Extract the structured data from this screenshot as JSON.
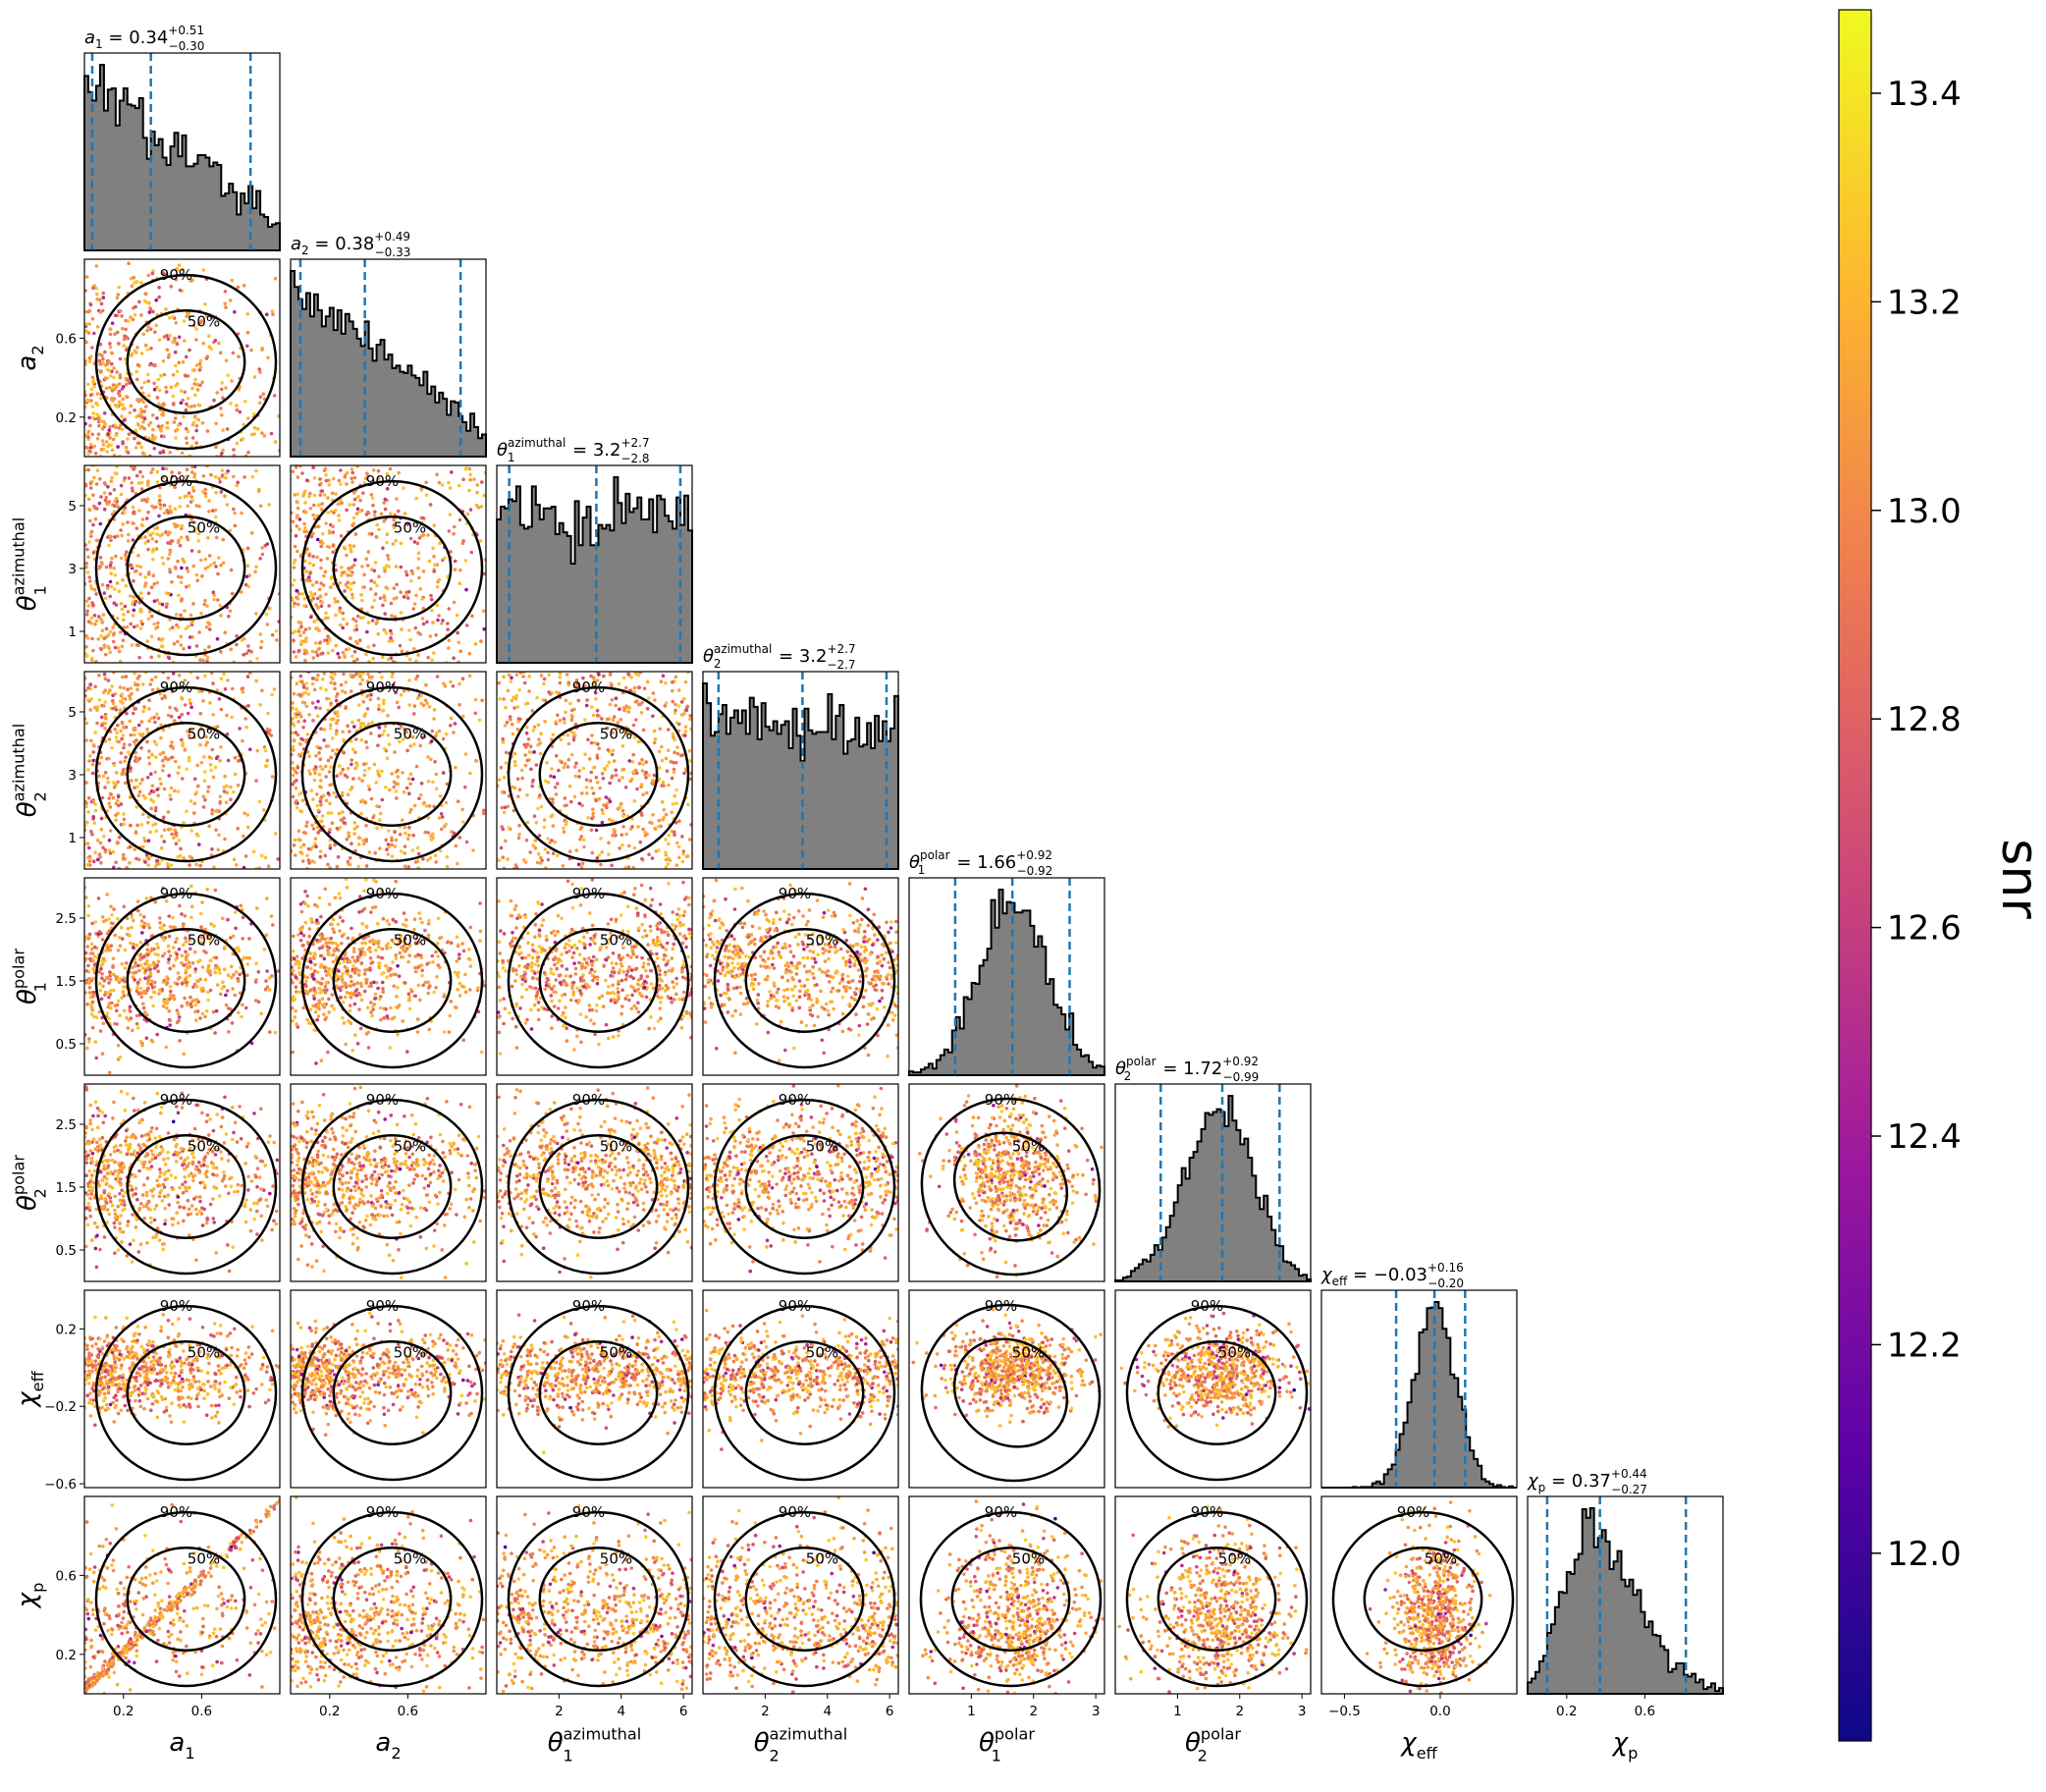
{
  "figure": {
    "colorbar_label": "snr",
    "colorbar_ticks": [
      "12.0",
      "12.2",
      "12.4",
      "12.6",
      "12.8",
      "13.0",
      "13.2",
      "13.4"
    ],
    "colorbar_tick_values": [
      12.0,
      12.2,
      12.4,
      12.6,
      12.8,
      13.0,
      13.2,
      13.4
    ],
    "colorbar_range": [
      11.82,
      13.48
    ],
    "colormap": [
      "#0d0887",
      "#5c01a6",
      "#9c179e",
      "#cc4778",
      "#ed7953",
      "#fdb42f",
      "#f0f921"
    ],
    "hist_fill": "#808080",
    "quantile_line_color": "#1f77b4",
    "contour_color": "#000000"
  },
  "chart_data": {
    "type": "scatter",
    "subtype": "corner_plot",
    "parameters": [
      {
        "key": "a1",
        "name": "a",
        "sub": "1",
        "sup": "",
        "title": {
          "median": "0.34",
          "plus": "+0.51",
          "minus": "−0.30"
        },
        "quantiles": [
          0.04,
          0.34,
          0.85
        ],
        "range": [
          0.0,
          1.0
        ],
        "ticks": [
          "0.2",
          "0.6"
        ],
        "tick_values": [
          0.2,
          0.6
        ],
        "hist_shape": "decreasing"
      },
      {
        "key": "a2",
        "name": "a",
        "sub": "2",
        "sup": "",
        "title": {
          "median": "0.38",
          "plus": "+0.49",
          "minus": "−0.33"
        },
        "quantiles": [
          0.05,
          0.38,
          0.87
        ],
        "range": [
          0.0,
          1.0
        ],
        "ticks": [
          "0.2",
          "0.6"
        ],
        "tick_values": [
          0.2,
          0.6
        ],
        "hist_shape": "decreasing_peak"
      },
      {
        "key": "theta1_az",
        "name": "θ",
        "sub": "1",
        "sup": "azimuthal",
        "title": {
          "median": "3.2",
          "plus": "+2.7",
          "minus": "−2.8"
        },
        "quantiles": [
          0.4,
          3.2,
          5.9
        ],
        "range": [
          0.0,
          6.28
        ],
        "ticks": [
          "1",
          "3",
          "5"
        ],
        "tick_values": [
          1,
          3,
          5
        ],
        "xticks": [
          "2",
          "4",
          "6"
        ],
        "xtick_values": [
          2,
          4,
          6
        ],
        "hist_shape": "flat"
      },
      {
        "key": "theta2_az",
        "name": "θ",
        "sub": "2",
        "sup": "azimuthal",
        "title": {
          "median": "3.2",
          "plus": "+2.7",
          "minus": "−2.7"
        },
        "quantiles": [
          0.5,
          3.2,
          5.9
        ],
        "range": [
          0.0,
          6.28
        ],
        "ticks": [
          "1",
          "3",
          "5"
        ],
        "tick_values": [
          1,
          3,
          5
        ],
        "xticks": [
          "2",
          "4",
          "6"
        ],
        "xtick_values": [
          2,
          4,
          6
        ],
        "hist_shape": "flat"
      },
      {
        "key": "theta1_pol",
        "name": "θ",
        "sub": "1",
        "sup": "polar",
        "title": {
          "median": "1.66",
          "plus": "+0.92",
          "minus": "−0.92"
        },
        "quantiles": [
          0.74,
          1.66,
          2.58
        ],
        "range": [
          0.0,
          3.14
        ],
        "ticks": [
          "0.5",
          "1.5",
          "2.5"
        ],
        "tick_values": [
          0.5,
          1.5,
          2.5
        ],
        "xticks": [
          "1",
          "2",
          "3"
        ],
        "xtick_values": [
          1,
          2,
          3
        ],
        "hist_shape": "gauss"
      },
      {
        "key": "theta2_pol",
        "name": "θ",
        "sub": "2",
        "sup": "polar",
        "title": {
          "median": "1.72",
          "plus": "+0.92",
          "minus": "−0.99"
        },
        "quantiles": [
          0.73,
          1.72,
          2.64
        ],
        "range": [
          0.0,
          3.14
        ],
        "ticks": [
          "0.5",
          "1.5",
          "2.5"
        ],
        "tick_values": [
          0.5,
          1.5,
          2.5
        ],
        "xticks": [
          "1",
          "2",
          "3"
        ],
        "xtick_values": [
          1,
          2,
          3
        ],
        "hist_shape": "gauss"
      },
      {
        "key": "chi_eff",
        "name": "χ",
        "sub": "eff",
        "sup": "",
        "title": {
          "median": "−0.03",
          "plus": "+0.16",
          "minus": "−0.20"
        },
        "quantiles": [
          -0.23,
          -0.03,
          0.13
        ],
        "range": [
          -0.62,
          0.4
        ],
        "ticks": [
          "−0.6",
          "−0.2",
          "0.2"
        ],
        "tick_values": [
          -0.6,
          -0.2,
          0.2
        ],
        "xticks": [
          "−0.5",
          "0.0"
        ],
        "xtick_values": [
          -0.5,
          0.0
        ],
        "hist_shape": "narrow"
      },
      {
        "key": "chi_p",
        "name": "χ",
        "sub": "p",
        "sup": "",
        "title": {
          "median": "0.37",
          "plus": "+0.44",
          "minus": "−0.27"
        },
        "quantiles": [
          0.1,
          0.37,
          0.81
        ],
        "range": [
          0.0,
          1.0
        ],
        "ticks": [
          "0.2",
          "0.6"
        ],
        "tick_values": [
          0.2,
          0.6
        ],
        "hist_shape": "skewed"
      }
    ],
    "contour_levels": [
      "50%",
      "90%"
    ],
    "grid": false,
    "legend": "none",
    "colorbar": "right"
  }
}
